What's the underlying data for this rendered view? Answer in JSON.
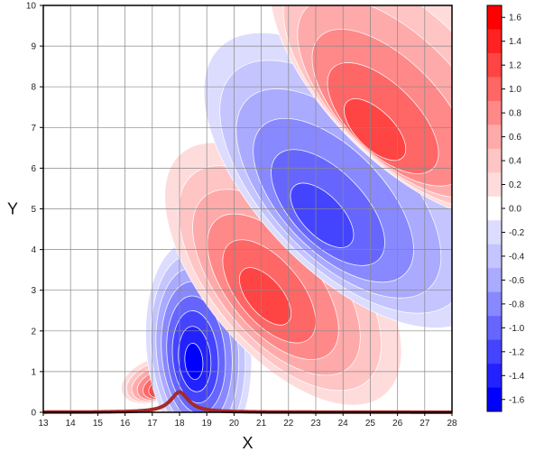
{
  "chart_data": {
    "type": "heatmap",
    "title": "",
    "xlabel": "X",
    "ylabel": "Y",
    "xlim": [
      13,
      28
    ],
    "ylim": [
      0,
      10
    ],
    "x_ticks": [
      "13",
      "14",
      "15",
      "16",
      "17",
      "18",
      "19",
      "20",
      "21",
      "22",
      "23",
      "24",
      "25",
      "26",
      "27",
      "28"
    ],
    "y_ticks": [
      "0",
      "1",
      "2",
      "3",
      "4",
      "5",
      "6",
      "7",
      "8",
      "9",
      "10"
    ],
    "grid": true,
    "colorbar": {
      "levels": [
        -1.6,
        -1.4,
        -1.2,
        -1.0,
        -0.8,
        -0.6,
        -0.4,
        -0.2,
        0.0,
        0.2,
        0.4,
        0.6,
        0.8,
        1.0,
        1.2,
        1.4,
        1.6
      ],
      "labels": [
        "1.6",
        "1.4",
        "1.2",
        "1.0",
        "0.8",
        "0.6",
        "0.4",
        "0.2",
        "0.0",
        "-0.2",
        "-0.4",
        "-0.6",
        "-0.8",
        "-1.0",
        "-1.2",
        "-1.4",
        "-1.6"
      ],
      "colors": [
        "#0000ff",
        "#2222ff",
        "#4444ff",
        "#6666ff",
        "#8888ff",
        "#aaaaff",
        "#c4c4ff",
        "#dcdcff",
        "#ffffff",
        "#ffdcdc",
        "#ffc4c4",
        "#ffaaaa",
        "#ff8888",
        "#ff6666",
        "#ff4444",
        "#ff2222",
        "#ff0000"
      ]
    },
    "lobes": [
      {
        "sign": 1,
        "x": 17.2,
        "y": 0.8,
        "peak": 1.6
      },
      {
        "sign": -1,
        "x": 18.7,
        "y": 1.6,
        "peak": 1.6
      },
      {
        "sign": 1,
        "x": 21.8,
        "y": 3.4,
        "peak": 1.2
      },
      {
        "sign": -1,
        "x": 24.2,
        "y": 5.7,
        "peak": 1.2
      },
      {
        "sign": 1,
        "x": 26.5,
        "y": 8.2,
        "peak": 1.2
      }
    ],
    "terrain": {
      "name": "mountain",
      "x0": 18.0,
      "height": 0.5,
      "width": 0.4,
      "color": "#a52a2a"
    }
  }
}
